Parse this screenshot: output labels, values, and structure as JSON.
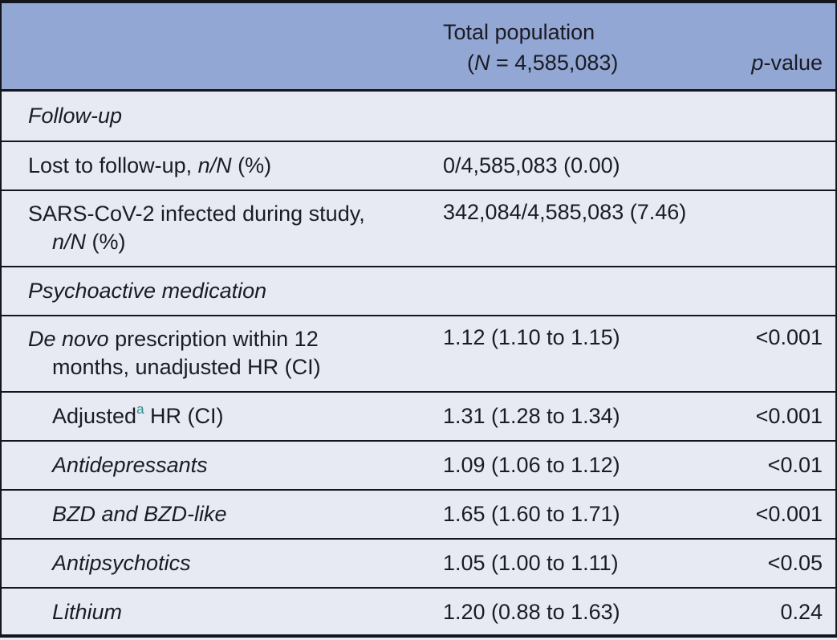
{
  "colors": {
    "header_bg": "#92a7d3",
    "body_bg": "#e7eaf3",
    "rule": "#15151e",
    "text": "#1b1b24",
    "footnote": "#2f8b8d"
  },
  "header": {
    "col2_lines": [
      [
        {
          "t": "Total population"
        }
      ],
      [
        {
          "t": "("
        },
        {
          "t": "N",
          "i": true
        },
        {
          "t": " = 4,585,083)"
        }
      ]
    ],
    "col3_lines": [
      [
        {
          "t": "p",
          "i": true
        },
        {
          "t": "-value"
        }
      ]
    ]
  },
  "rows": [
    {
      "label_lines": [
        [
          {
            "t": "Follow-up",
            "i": true
          }
        ]
      ],
      "value": "",
      "p": ""
    },
    {
      "label_lines": [
        [
          {
            "t": "Lost to follow-up, "
          },
          {
            "t": "n/N",
            "i": true
          },
          {
            "t": " (%)"
          }
        ]
      ],
      "value": "0/4,585,083 (0.00)",
      "p": ""
    },
    {
      "label_lines": [
        [
          {
            "t": "SARS-CoV-2 infected during study,"
          }
        ],
        [
          {
            "t": "n/N",
            "i": true
          },
          {
            "t": " (%)"
          }
        ]
      ],
      "value": "342,084/4,585,083 (7.46)",
      "p": ""
    },
    {
      "label_lines": [
        [
          {
            "t": "Psychoactive medication",
            "i": true
          }
        ]
      ],
      "value": "",
      "p": ""
    },
    {
      "label_lines": [
        [
          {
            "t": "De novo",
            "i": true
          },
          {
            "t": " prescription within 12"
          }
        ],
        [
          {
            "t": "months, unadjusted HR (CI)"
          }
        ]
      ],
      "value": "1.12 (1.10 to 1.15)",
      "p": "<0.001"
    },
    {
      "label_lines": [
        [
          {
            "t": "Adjusted"
          },
          {
            "t": "a",
            "sup": true
          },
          {
            "t": " HR (CI)"
          }
        ]
      ],
      "value": "1.31 (1.28 to 1.34)",
      "p": "<0.001"
    },
    {
      "label_lines": [
        [
          {
            "t": "Antidepressants",
            "i": true
          }
        ]
      ],
      "value": "1.09 (1.06 to 1.12)",
      "p": "<0.01"
    },
    {
      "label_lines": [
        [
          {
            "t": "BZD and BZD-like",
            "i": true
          }
        ]
      ],
      "value": "1.65 (1.60 to 1.71)",
      "p": "<0.001"
    },
    {
      "label_lines": [
        [
          {
            "t": "Antipsychotics",
            "i": true
          }
        ]
      ],
      "value": "1.05 (1.00 to 1.11)",
      "p": "<0.05"
    },
    {
      "label_lines": [
        [
          {
            "t": "Lithium",
            "i": true
          }
        ]
      ],
      "value": "1.20 (0.88 to 1.63)",
      "p": "0.24"
    }
  ]
}
